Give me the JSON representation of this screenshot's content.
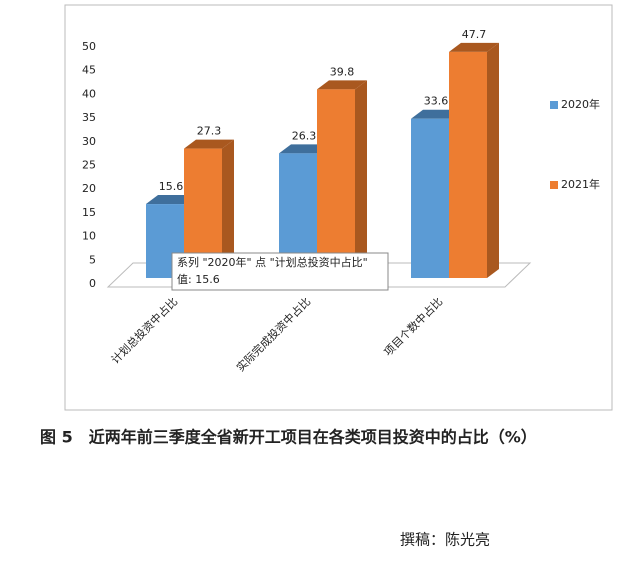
{
  "chart_data": {
    "type": "bar3d",
    "categories": [
      "计划总投资中占比",
      "实际完成投资中占比",
      "项目个数中占比"
    ],
    "series": [
      {
        "name": "2020年",
        "color": "#5b9bd5",
        "side": "#3f6f9c",
        "values": [
          15.6,
          26.3,
          33.6
        ]
      },
      {
        "name": "2021年",
        "color": "#ed7d31",
        "side": "#a9581f",
        "values": [
          27.3,
          39.8,
          47.7
        ]
      }
    ],
    "ylim": [
      0,
      50
    ],
    "yticks": [
      0,
      5,
      10,
      15,
      20,
      25,
      30,
      35,
      40,
      45,
      50
    ],
    "legend": "right",
    "tooltip": {
      "title": "系列 \"2020年\" 点 \"计划总投资中占比\"",
      "text": "值: 15.6"
    }
  },
  "caption": "图 5　近两年前三季度全省新开工项目在各类项目投资中的占比（%）",
  "author": "撰稿：陈光亮"
}
